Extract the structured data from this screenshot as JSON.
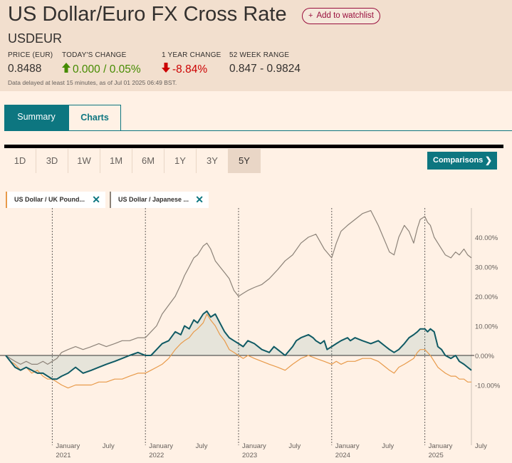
{
  "header": {
    "title": "US Dollar/Euro FX Cross Rate",
    "watchlist_label": "Add to watchlist",
    "symbol": "USDEUR",
    "stats": [
      {
        "label": "PRICE (EUR)",
        "value": "0.8488"
      },
      {
        "label": "TODAY'S CHANGE",
        "value": "0.000 / 0.05%"
      },
      {
        "label": "1 YEAR CHANGE",
        "value": "-8.84%"
      },
      {
        "label": "52 WEEK RANGE",
        "value": "0.847 - 0.9824"
      }
    ],
    "delayed_note": "Data delayed at least 15 minutes, as of Jul 01 2025 06:49 BST.",
    "colors": {
      "up": "#458b00",
      "down": "#cc0000",
      "accent": "#0d7680",
      "watch": "#990f3d"
    },
    "icons": {
      "up": "arrow-up-icon",
      "down": "arrow-down-icon"
    }
  },
  "tabs": [
    "Summary",
    "Charts"
  ],
  "ranges": [
    "1D",
    "3D",
    "1W",
    "1M",
    "6M",
    "1Y",
    "3Y",
    "5Y"
  ],
  "active_range": "5Y",
  "comparisons_label": "Comparisons",
  "comparison_chips": [
    {
      "label": "US Dollar / UK Pound...",
      "color": "#e89a4a"
    },
    {
      "label": "US Dollar / Japanese ...",
      "color": "#8c8278"
    }
  ],
  "chart_data": {
    "type": "line",
    "ylim": [
      -15,
      50
    ],
    "y_ticks": [
      {
        "v": 40,
        "label": "40.00%"
      },
      {
        "v": 30,
        "label": "30.00%"
      },
      {
        "v": 20,
        "label": "20.00%"
      },
      {
        "v": 10,
        "label": "10.00%"
      },
      {
        "v": 0,
        "label": "0.00%"
      },
      {
        "v": -10,
        "label": "-10.00%"
      }
    ],
    "x_ticks": [
      {
        "t": 2021.0,
        "line1": "January",
        "line2": "2021"
      },
      {
        "t": 2021.5,
        "line1": "July",
        "line2": ""
      },
      {
        "t": 2022.0,
        "line1": "January",
        "line2": "2022"
      },
      {
        "t": 2022.5,
        "line1": "July",
        "line2": ""
      },
      {
        "t": 2023.0,
        "line1": "January",
        "line2": "2023"
      },
      {
        "t": 2023.5,
        "line1": "July",
        "line2": ""
      },
      {
        "t": 2024.0,
        "line1": "January",
        "line2": "2024"
      },
      {
        "t": 2024.5,
        "line1": "July",
        "line2": ""
      },
      {
        "t": 2025.0,
        "line1": "January",
        "line2": "2025"
      },
      {
        "t": 2025.5,
        "line1": "July",
        "line2": ""
      }
    ],
    "x_range": [
      2020.5,
      2025.5
    ],
    "year_dividers": [
      2021.0,
      2022.0,
      2023.0,
      2024.0,
      2025.0
    ],
    "series": [
      {
        "color": "#0f5a64",
        "filled": true,
        "points": [
          [
            2020.5,
            0
          ],
          [
            2020.55,
            -2
          ],
          [
            2020.6,
            -4
          ],
          [
            2020.66,
            -5
          ],
          [
            2020.72,
            -4
          ],
          [
            2020.78,
            -5
          ],
          [
            2020.84,
            -6
          ],
          [
            2020.9,
            -6
          ],
          [
            2020.95,
            -7
          ],
          [
            2021.0,
            -8
          ],
          [
            2021.05,
            -8
          ],
          [
            2021.1,
            -7
          ],
          [
            2021.17,
            -6
          ],
          [
            2021.25,
            -4
          ],
          [
            2021.33,
            -6
          ],
          [
            2021.42,
            -5
          ],
          [
            2021.5,
            -4
          ],
          [
            2021.58,
            -3
          ],
          [
            2021.67,
            -2
          ],
          [
            2021.75,
            -1
          ],
          [
            2021.83,
            0
          ],
          [
            2021.92,
            1
          ],
          [
            2022.0,
            0
          ],
          [
            2022.06,
            0
          ],
          [
            2022.12,
            2
          ],
          [
            2022.18,
            4
          ],
          [
            2022.25,
            5
          ],
          [
            2022.32,
            8
          ],
          [
            2022.38,
            7
          ],
          [
            2022.42,
            10
          ],
          [
            2022.47,
            9
          ],
          [
            2022.52,
            12
          ],
          [
            2022.56,
            11
          ],
          [
            2022.62,
            14
          ],
          [
            2022.66,
            15
          ],
          [
            2022.7,
            13
          ],
          [
            2022.75,
            14
          ],
          [
            2022.8,
            11
          ],
          [
            2022.85,
            8
          ],
          [
            2022.9,
            6
          ],
          [
            2022.95,
            5
          ],
          [
            2023.0,
            4
          ],
          [
            2023.05,
            3
          ],
          [
            2023.1,
            5
          ],
          [
            2023.17,
            4
          ],
          [
            2023.25,
            2
          ],
          [
            2023.33,
            1
          ],
          [
            2023.38,
            3
          ],
          [
            2023.42,
            2
          ],
          [
            2023.5,
            0
          ],
          [
            2023.58,
            3
          ],
          [
            2023.62,
            5
          ],
          [
            2023.67,
            6
          ],
          [
            2023.75,
            7
          ],
          [
            2023.8,
            6
          ],
          [
            2023.83,
            5
          ],
          [
            2023.88,
            4
          ],
          [
            2023.92,
            5
          ],
          [
            2023.95,
            2
          ],
          [
            2024.0,
            3
          ],
          [
            2024.05,
            4
          ],
          [
            2024.1,
            5
          ],
          [
            2024.17,
            6
          ],
          [
            2024.2,
            5
          ],
          [
            2024.25,
            6
          ],
          [
            2024.33,
            5
          ],
          [
            2024.42,
            4
          ],
          [
            2024.5,
            5
          ],
          [
            2024.58,
            3
          ],
          [
            2024.62,
            2
          ],
          [
            2024.67,
            1
          ],
          [
            2024.72,
            2
          ],
          [
            2024.78,
            4
          ],
          [
            2024.83,
            6
          ],
          [
            2024.88,
            7
          ],
          [
            2024.92,
            8
          ],
          [
            2024.95,
            9
          ],
          [
            2025.0,
            9
          ],
          [
            2025.03,
            8
          ],
          [
            2025.06,
            9
          ],
          [
            2025.1,
            8
          ],
          [
            2025.14,
            3
          ],
          [
            2025.18,
            2
          ],
          [
            2025.22,
            0
          ],
          [
            2025.28,
            -1
          ],
          [
            2025.33,
            0
          ],
          [
            2025.37,
            -2
          ],
          [
            2025.42,
            -3
          ],
          [
            2025.46,
            -4
          ],
          [
            2025.5,
            -5
          ]
        ]
      },
      {
        "color": "#e89a4a",
        "filled": false,
        "points": [
          [
            2020.5,
            0
          ],
          [
            2020.55,
            -2
          ],
          [
            2020.6,
            -3
          ],
          [
            2020.66,
            -5
          ],
          [
            2020.72,
            -4
          ],
          [
            2020.78,
            -6
          ],
          [
            2020.84,
            -5
          ],
          [
            2020.9,
            -7
          ],
          [
            2020.95,
            -8
          ],
          [
            2021.0,
            -8
          ],
          [
            2021.05,
            -9
          ],
          [
            2021.1,
            -10
          ],
          [
            2021.17,
            -11
          ],
          [
            2021.25,
            -10
          ],
          [
            2021.33,
            -10
          ],
          [
            2021.42,
            -10
          ],
          [
            2021.5,
            -9
          ],
          [
            2021.58,
            -9
          ],
          [
            2021.67,
            -8
          ],
          [
            2021.75,
            -8
          ],
          [
            2021.83,
            -7
          ],
          [
            2021.92,
            -6
          ],
          [
            2022.0,
            -6
          ],
          [
            2022.06,
            -5
          ],
          [
            2022.12,
            -4
          ],
          [
            2022.18,
            -3
          ],
          [
            2022.25,
            -1
          ],
          [
            2022.32,
            2
          ],
          [
            2022.38,
            4
          ],
          [
            2022.42,
            5
          ],
          [
            2022.47,
            6
          ],
          [
            2022.52,
            8
          ],
          [
            2022.56,
            9
          ],
          [
            2022.62,
            11
          ],
          [
            2022.66,
            14
          ],
          [
            2022.7,
            12
          ],
          [
            2022.75,
            10
          ],
          [
            2022.8,
            7
          ],
          [
            2022.85,
            5
          ],
          [
            2022.9,
            2
          ],
          [
            2022.95,
            1
          ],
          [
            2023.0,
            0
          ],
          [
            2023.05,
            -1
          ],
          [
            2023.1,
            0
          ],
          [
            2023.17,
            -1
          ],
          [
            2023.25,
            -2
          ],
          [
            2023.33,
            -3
          ],
          [
            2023.42,
            -4
          ],
          [
            2023.5,
            -5
          ],
          [
            2023.58,
            -3
          ],
          [
            2023.67,
            -1
          ],
          [
            2023.75,
            0
          ],
          [
            2023.83,
            -1
          ],
          [
            2023.92,
            -2
          ],
          [
            2024.0,
            -3
          ],
          [
            2024.05,
            -2
          ],
          [
            2024.1,
            -3
          ],
          [
            2024.17,
            -2
          ],
          [
            2024.25,
            -2
          ],
          [
            2024.33,
            -1
          ],
          [
            2024.42,
            -1
          ],
          [
            2024.5,
            -2
          ],
          [
            2024.58,
            -4
          ],
          [
            2024.62,
            -5
          ],
          [
            2024.67,
            -6
          ],
          [
            2024.72,
            -4
          ],
          [
            2024.78,
            -3
          ],
          [
            2024.83,
            -2
          ],
          [
            2024.88,
            -1
          ],
          [
            2024.92,
            1
          ],
          [
            2024.95,
            2
          ],
          [
            2025.0,
            2
          ],
          [
            2025.03,
            1
          ],
          [
            2025.06,
            0
          ],
          [
            2025.1,
            -2
          ],
          [
            2025.14,
            -4
          ],
          [
            2025.18,
            -5
          ],
          [
            2025.22,
            -6
          ],
          [
            2025.28,
            -7
          ],
          [
            2025.33,
            -7
          ],
          [
            2025.37,
            -8
          ],
          [
            2025.42,
            -8
          ],
          [
            2025.46,
            -9
          ],
          [
            2025.5,
            -9
          ]
        ]
      },
      {
        "color": "#8c8278",
        "filled": false,
        "points": [
          [
            2020.5,
            0
          ],
          [
            2020.55,
            -1
          ],
          [
            2020.6,
            -2
          ],
          [
            2020.66,
            -3
          ],
          [
            2020.72,
            -2
          ],
          [
            2020.78,
            -3
          ],
          [
            2020.84,
            -3
          ],
          [
            2020.9,
            -2
          ],
          [
            2020.95,
            -3
          ],
          [
            2021.0,
            -2
          ],
          [
            2021.05,
            -1
          ],
          [
            2021.1,
            1
          ],
          [
            2021.17,
            2
          ],
          [
            2021.25,
            3
          ],
          [
            2021.33,
            2
          ],
          [
            2021.42,
            3
          ],
          [
            2021.5,
            4
          ],
          [
            2021.58,
            3
          ],
          [
            2021.67,
            4
          ],
          [
            2021.75,
            5
          ],
          [
            2021.83,
            5
          ],
          [
            2021.92,
            6
          ],
          [
            2022.0,
            6
          ],
          [
            2022.06,
            8
          ],
          [
            2022.12,
            10
          ],
          [
            2022.18,
            14
          ],
          [
            2022.25,
            17
          ],
          [
            2022.32,
            20
          ],
          [
            2022.38,
            24
          ],
          [
            2022.42,
            27
          ],
          [
            2022.47,
            30
          ],
          [
            2022.52,
            33
          ],
          [
            2022.56,
            34
          ],
          [
            2022.62,
            37
          ],
          [
            2022.66,
            38
          ],
          [
            2022.7,
            36
          ],
          [
            2022.75,
            32
          ],
          [
            2022.8,
            30
          ],
          [
            2022.85,
            28
          ],
          [
            2022.9,
            26
          ],
          [
            2022.95,
            22
          ],
          [
            2023.0,
            20
          ],
          [
            2023.05,
            21
          ],
          [
            2023.1,
            22
          ],
          [
            2023.17,
            23
          ],
          [
            2023.25,
            24
          ],
          [
            2023.33,
            26
          ],
          [
            2023.42,
            29
          ],
          [
            2023.5,
            32
          ],
          [
            2023.58,
            34
          ],
          [
            2023.67,
            38
          ],
          [
            2023.75,
            40
          ],
          [
            2023.83,
            41
          ],
          [
            2023.92,
            36
          ],
          [
            2024.0,
            33
          ],
          [
            2024.05,
            38
          ],
          [
            2024.1,
            42
          ],
          [
            2024.17,
            44
          ],
          [
            2024.25,
            46
          ],
          [
            2024.33,
            48
          ],
          [
            2024.42,
            49
          ],
          [
            2024.5,
            44
          ],
          [
            2024.58,
            38
          ],
          [
            2024.62,
            35
          ],
          [
            2024.67,
            34
          ],
          [
            2024.72,
            40
          ],
          [
            2024.78,
            44
          ],
          [
            2024.83,
            42
          ],
          [
            2024.88,
            38
          ],
          [
            2024.92,
            43
          ],
          [
            2024.95,
            46
          ],
          [
            2025.0,
            47
          ],
          [
            2025.03,
            45
          ],
          [
            2025.06,
            44
          ],
          [
            2025.1,
            40
          ],
          [
            2025.14,
            38
          ],
          [
            2025.18,
            36
          ],
          [
            2025.22,
            34
          ],
          [
            2025.28,
            33
          ],
          [
            2025.33,
            35
          ],
          [
            2025.37,
            34
          ],
          [
            2025.42,
            36
          ],
          [
            2025.46,
            34
          ],
          [
            2025.5,
            33
          ]
        ]
      }
    ]
  }
}
